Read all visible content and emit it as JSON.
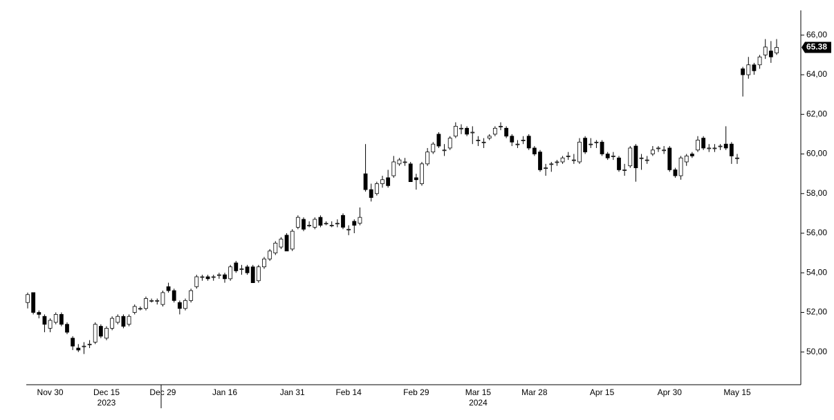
{
  "chart_data": {
    "type": "candlestick",
    "categories": [
      null,
      null,
      null,
      null,
      "Nov 30",
      null,
      null,
      null,
      null,
      null,
      null,
      null,
      null,
      null,
      "Dec 15",
      null,
      null,
      null,
      null,
      null,
      null,
      null,
      null,
      null,
      "Dec 29",
      null,
      null,
      null,
      null,
      null,
      null,
      null,
      null,
      null,
      null,
      "Jan 16",
      null,
      null,
      null,
      null,
      null,
      null,
      null,
      null,
      null,
      null,
      null,
      "Jan 31",
      null,
      null,
      null,
      null,
      null,
      null,
      null,
      null,
      null,
      "Feb 14",
      null,
      null,
      null,
      null,
      null,
      null,
      null,
      null,
      null,
      null,
      null,
      "Feb 29",
      null,
      null,
      null,
      null,
      null,
      null,
      null,
      null,
      null,
      null,
      "Mar 15",
      null,
      null,
      null,
      null,
      null,
      null,
      null,
      null,
      null,
      "Mar 28",
      null,
      null,
      null,
      null,
      null,
      null,
      null,
      null,
      null,
      null,
      null,
      "Apr 15",
      null,
      null,
      null,
      null,
      null,
      null,
      null,
      null,
      null,
      null,
      null,
      "Apr 30",
      null,
      null,
      null,
      null,
      null,
      null,
      null,
      null,
      null,
      null,
      null,
      "May 15",
      null,
      null,
      null,
      null,
      null,
      null,
      null
    ],
    "years": [
      "2023",
      "2024"
    ],
    "open": [
      52.5,
      53.0,
      52.0,
      51.8,
      51.2,
      51.5,
      51.9,
      51.4,
      50.7,
      50.2,
      50.3,
      50.4,
      50.5,
      51.3,
      50.7,
      51.2,
      51.5,
      51.8,
      51.4,
      52.0,
      52.2,
      52.2,
      52.6,
      52.6,
      52.4,
      53.3,
      53.1,
      52.5,
      52.2,
      52.6,
      53.3,
      53.8,
      53.8,
      53.8,
      53.9,
      53.9,
      53.7,
      54.5,
      54.2,
      54.3,
      54.3,
      53.6,
      54.3,
      54.7,
      55.0,
      55.3,
      55.9,
      55.2,
      56.3,
      56.7,
      56.4,
      56.3,
      56.8,
      56.5,
      56.4,
      56.5,
      56.9,
      56.2,
      56.6,
      56.5,
      59.0,
      58.2,
      58.0,
      58.5,
      58.8,
      58.9,
      59.5,
      59.6,
      59.5,
      58.8,
      58.5,
      59.5,
      60.1,
      61.0,
      60.2,
      60.3,
      60.9,
      61.3,
      61.3,
      61.1,
      60.7,
      60.6,
      60.8,
      61.0,
      61.4,
      61.3,
      60.9,
      60.5,
      60.7,
      60.9,
      60.3,
      60.1,
      59.3,
      59.5,
      59.6,
      59.6,
      59.9,
      59.7,
      59.6,
      60.8,
      60.5,
      60.6,
      60.6,
      60.0,
      59.9,
      59.8,
      59.2,
      59.4,
      60.4,
      59.8,
      59.7,
      60.0,
      60.3,
      60.2,
      60.3,
      59.2,
      58.9,
      59.6,
      60.0,
      60.2,
      60.8,
      60.3,
      60.3,
      60.4,
      60.5,
      60.5,
      59.8,
      64.3,
      64.0,
      64.5,
      64.5,
      65.0,
      65.2,
      65.1
    ],
    "high": [
      53.0,
      53.0,
      52.1,
      51.9,
      51.7,
      52.0,
      52.0,
      51.5,
      50.8,
      50.4,
      50.5,
      50.6,
      51.5,
      51.4,
      51.3,
      51.8,
      51.9,
      51.9,
      51.9,
      52.4,
      52.3,
      52.8,
      52.7,
      52.7,
      53.1,
      53.5,
      53.2,
      52.6,
      52.7,
      53.2,
      53.9,
      53.9,
      53.9,
      53.9,
      54.0,
      54.0,
      54.4,
      54.6,
      54.4,
      54.4,
      54.4,
      54.4,
      54.8,
      55.2,
      55.6,
      55.8,
      56.0,
      56.2,
      56.9,
      56.8,
      56.6,
      56.8,
      56.9,
      56.6,
      56.6,
      56.7,
      57.0,
      56.4,
      56.7,
      57.3,
      60.5,
      58.5,
      58.6,
      58.9,
      59.2,
      59.9,
      59.8,
      59.8,
      59.6,
      59.0,
      59.6,
      60.3,
      60.6,
      61.1,
      60.5,
      60.9,
      61.6,
      61.5,
      61.4,
      61.4,
      60.9,
      60.8,
      61.0,
      61.4,
      61.6,
      61.4,
      61.0,
      60.7,
      60.9,
      61.0,
      60.4,
      60.2,
      59.5,
      59.6,
      59.7,
      59.9,
      60.1,
      60.0,
      60.8,
      60.9,
      60.8,
      60.7,
      60.7,
      60.1,
      60.1,
      59.9,
      59.5,
      60.4,
      60.5,
      60.0,
      59.9,
      60.4,
      60.4,
      60.4,
      60.4,
      59.3,
      59.9,
      60.0,
      60.1,
      60.9,
      60.9,
      60.5,
      60.5,
      60.5,
      61.4,
      60.6,
      60.0,
      64.4,
      64.9,
      64.6,
      65.0,
      65.8,
      65.7,
      65.8
    ],
    "low": [
      52.2,
      51.9,
      51.7,
      51.0,
      51.0,
      51.4,
      51.3,
      50.9,
      50.1,
      50.0,
      49.9,
      50.2,
      50.4,
      50.7,
      50.6,
      51.1,
      51.4,
      51.2,
      51.3,
      51.9,
      52.1,
      52.1,
      52.5,
      52.4,
      52.3,
      53.0,
      52.5,
      51.9,
      52.1,
      52.5,
      53.2,
      53.6,
      53.6,
      53.6,
      53.7,
      53.5,
      53.6,
      54.0,
      53.9,
      53.9,
      53.5,
      53.5,
      54.2,
      54.6,
      54.9,
      55.2,
      55.1,
      55.1,
      56.2,
      56.1,
      56.3,
      56.2,
      56.3,
      56.4,
      56.3,
      56.3,
      56.2,
      55.9,
      56.0,
      56.4,
      58.1,
      57.6,
      57.9,
      58.3,
      58.3,
      58.8,
      59.4,
      59.4,
      58.6,
      58.2,
      58.4,
      59.4,
      60.0,
      60.3,
      59.9,
      60.2,
      60.8,
      61.0,
      60.9,
      60.5,
      60.4,
      60.3,
      60.7,
      60.9,
      61.2,
      60.8,
      60.4,
      60.3,
      60.5,
      60.2,
      59.9,
      59.1,
      58.9,
      59.1,
      59.4,
      59.5,
      59.7,
      59.5,
      59.5,
      60.0,
      60.3,
      60.3,
      59.9,
      59.7,
      59.7,
      59.1,
      58.9,
      59.3,
      58.6,
      59.2,
      59.5,
      59.9,
      60.1,
      60.0,
      59.1,
      58.8,
      58.7,
      59.4,
      59.8,
      60.1,
      60.2,
      60.1,
      60.1,
      60.2,
      60.2,
      59.5,
      59.5,
      62.9,
      63.8,
      64.0,
      64.3,
      64.8,
      64.6,
      65.0
    ],
    "close": [
      52.9,
      52.0,
      51.9,
      51.4,
      51.6,
      51.9,
      51.4,
      51.0,
      50.3,
      50.1,
      50.3,
      50.4,
      51.4,
      50.8,
      51.2,
      51.7,
      51.8,
      51.3,
      51.8,
      52.3,
      52.2,
      52.7,
      52.6,
      52.6,
      53.0,
      53.1,
      52.6,
      52.2,
      52.6,
      53.1,
      53.8,
      53.8,
      53.7,
      53.8,
      53.9,
      53.7,
      54.3,
      54.1,
      54.2,
      54.0,
      53.5,
      54.3,
      54.7,
      55.1,
      55.5,
      55.7,
      55.1,
      56.1,
      56.8,
      56.2,
      56.4,
      56.7,
      56.4,
      56.5,
      56.4,
      56.5,
      56.3,
      56.2,
      56.4,
      56.8,
      58.2,
      57.8,
      58.5,
      58.7,
      58.4,
      59.6,
      59.7,
      59.6,
      58.6,
      58.7,
      59.5,
      60.1,
      60.5,
      60.4,
      60.2,
      60.8,
      61.4,
      61.3,
      61.0,
      61.1,
      60.7,
      60.6,
      60.9,
      61.3,
      61.4,
      60.9,
      60.6,
      60.5,
      60.7,
      60.3,
      60.0,
      59.2,
      59.3,
      59.5,
      59.6,
      59.8,
      59.9,
      59.7,
      60.6,
      60.1,
      60.5,
      60.6,
      60.0,
      59.8,
      59.9,
      59.2,
      59.2,
      60.3,
      59.3,
      59.8,
      59.7,
      60.2,
      60.3,
      60.2,
      59.2,
      58.9,
      59.8,
      59.9,
      59.9,
      60.7,
      60.3,
      60.3,
      60.3,
      60.4,
      60.3,
      59.9,
      59.8,
      64.0,
      64.5,
      64.2,
      64.9,
      65.4,
      64.9,
      65.38
    ],
    "last_price": 65.38,
    "up_color": "#ffffff",
    "down_color": "#000000",
    "wick_color": "#000000",
    "ylim": [
      48.35,
      67.25
    ],
    "yticks": [
      {
        "value": 50,
        "label": "50,00"
      },
      {
        "value": 52,
        "label": "52,00"
      },
      {
        "value": 54,
        "label": "54,00"
      },
      {
        "value": 56,
        "label": "56,00"
      },
      {
        "value": 58,
        "label": "58,00"
      },
      {
        "value": 60,
        "label": "60,00"
      },
      {
        "value": 62,
        "label": "62,00"
      },
      {
        "value": 64,
        "label": "64,00"
      },
      {
        "value": 66,
        "label": "66,00"
      }
    ],
    "grid": false
  }
}
